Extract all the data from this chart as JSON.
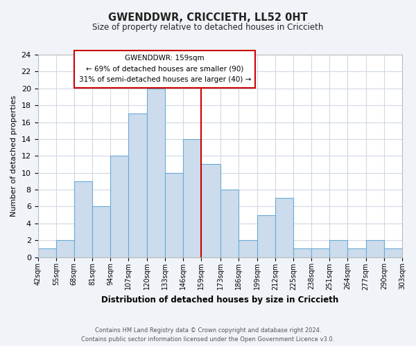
{
  "title": "GWENDDWR, CRICCIETH, LL52 0HT",
  "subtitle": "Size of property relative to detached houses in Criccieth",
  "xlabel": "Distribution of detached houses by size in Criccieth",
  "ylabel": "Number of detached properties",
  "bin_edges": [
    42,
    55,
    68,
    81,
    94,
    107,
    120,
    133,
    146,
    159,
    173,
    186,
    199,
    212,
    225,
    238,
    251,
    264,
    277,
    290,
    303
  ],
  "counts": [
    1,
    2,
    9,
    6,
    12,
    17,
    20,
    10,
    14,
    11,
    8,
    2,
    5,
    7,
    1,
    1,
    2,
    1,
    2,
    1
  ],
  "bar_color": "#ccdcec",
  "bar_edge_color": "#6aaad4",
  "vline_x": 159,
  "vline_color": "#cc0000",
  "annotation_title": "GWENDDWR: 159sqm",
  "annotation_line1": "← 69% of detached houses are smaller (90)",
  "annotation_line2": "31% of semi-detached houses are larger (40) →",
  "annotation_box_color": "#ffffff",
  "annotation_box_edge": "#cc0000",
  "tick_labels": [
    "42sqm",
    "55sqm",
    "68sqm",
    "81sqm",
    "94sqm",
    "107sqm",
    "120sqm",
    "133sqm",
    "146sqm",
    "159sqm",
    "173sqm",
    "186sqm",
    "199sqm",
    "212sqm",
    "225sqm",
    "238sqm",
    "251sqm",
    "264sqm",
    "277sqm",
    "290sqm",
    "303sqm"
  ],
  "ylim": [
    0,
    24
  ],
  "yticks": [
    0,
    2,
    4,
    6,
    8,
    10,
    12,
    14,
    16,
    18,
    20,
    22,
    24
  ],
  "footer_line1": "Contains HM Land Registry data © Crown copyright and database right 2024.",
  "footer_line2": "Contains public sector information licensed under the Open Government Licence v3.0.",
  "bg_color": "#f0f4f8",
  "plot_bg_color": "#ffffff",
  "grid_color": "#d0d8e4"
}
